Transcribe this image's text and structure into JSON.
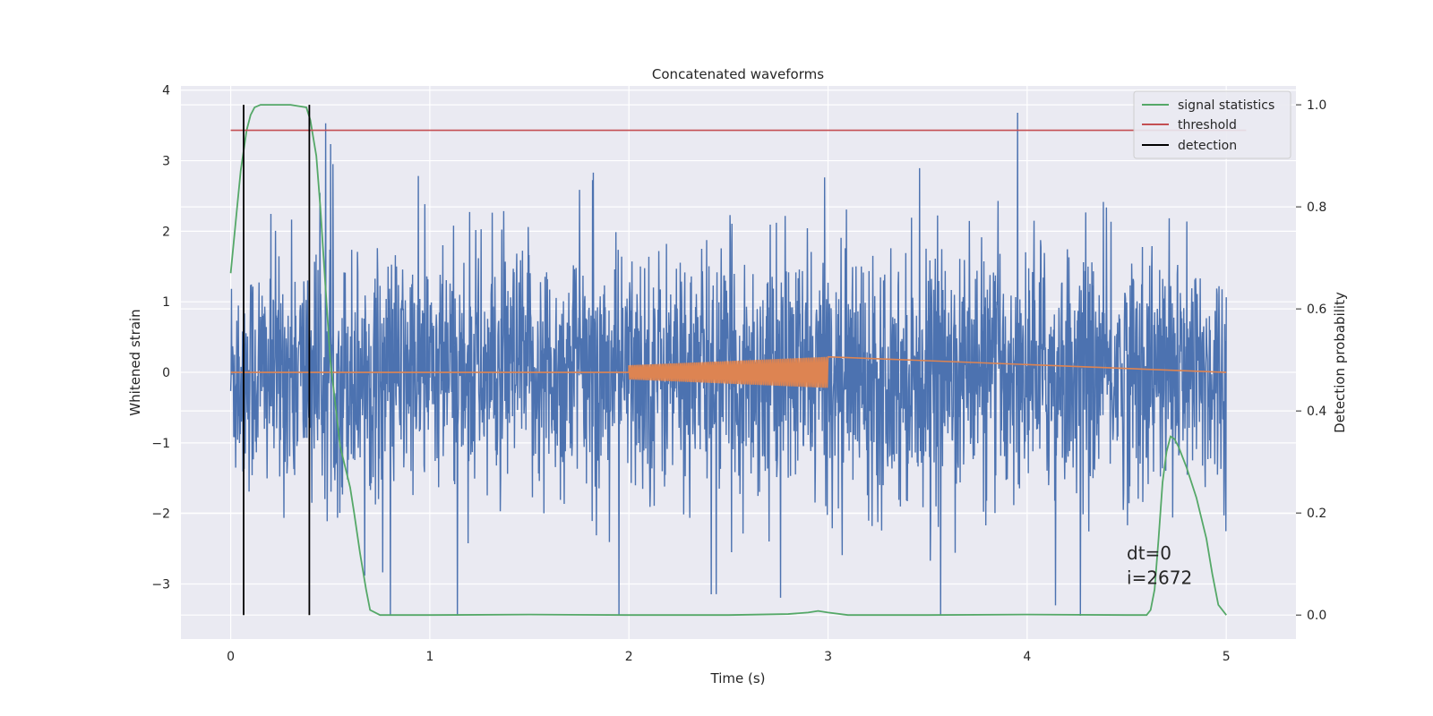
{
  "chart_data": {
    "type": "line",
    "title": "Concatenated waveforms",
    "xlabel": "Time (s)",
    "ylabel": "Whitened strain",
    "ylabel_right": "Detection probability",
    "xlim": [
      -0.25,
      5.35
    ],
    "ylim": [
      -3.78,
      4.06
    ],
    "ylim_right": [
      -0.047,
      1.037
    ],
    "xticks": [
      0,
      1,
      2,
      3,
      4,
      5
    ],
    "xtick_labels": [
      "0",
      "1",
      "2",
      "3",
      "4",
      "5"
    ],
    "yticks": [
      -3,
      -2,
      -1,
      0,
      1,
      2,
      3,
      4
    ],
    "ytick_labels": [
      "−3",
      "−2",
      "−1",
      "0",
      "1",
      "2",
      "3",
      "4"
    ],
    "yticks_right": [
      0.0,
      0.2,
      0.4,
      0.6,
      0.8,
      1.0
    ],
    "ytick_labels_right": [
      "0.0",
      "0.2",
      "0.4",
      "0.6",
      "0.8",
      "1.0"
    ],
    "grid": true,
    "legend_position": "top-right",
    "series": [
      {
        "key": "noise",
        "axis": "left",
        "color": "#4c72b0",
        "description_range": {
          "x": [
            0,
            5
          ],
          "y": [
            -3.45,
            3.68
          ]
        }
      },
      {
        "key": "injection",
        "axis": "left",
        "color": "#dd8452",
        "x": [
          0,
          2,
          3,
          5
        ],
        "amplitude_start": 0.1,
        "amplitude_end": 0.22
      },
      {
        "name": "signal statistics",
        "axis": "right",
        "color": "#55a868",
        "x": [
          0.0,
          0.02,
          0.05,
          0.08,
          0.1,
          0.12,
          0.15,
          0.2,
          0.3,
          0.38,
          0.4,
          0.43,
          0.45,
          0.47,
          0.5,
          0.55,
          0.6,
          0.62,
          0.65,
          0.68,
          0.7,
          0.75,
          1.0,
          1.5,
          2.0,
          2.5,
          2.8,
          2.9,
          2.95,
          3.0,
          3.1,
          3.5,
          4.0,
          4.5,
          4.6,
          4.62,
          4.64,
          4.66,
          4.68,
          4.7,
          4.72,
          4.74,
          4.76,
          4.8,
          4.85,
          4.9,
          4.93,
          4.96,
          5.0
        ],
        "values": [
          0.67,
          0.75,
          0.87,
          0.95,
          0.98,
          0.995,
          1.0,
          1.0,
          1.0,
          0.995,
          0.97,
          0.9,
          0.8,
          0.68,
          0.5,
          0.33,
          0.25,
          0.2,
          0.12,
          0.05,
          0.01,
          0.0,
          0.0,
          0.001,
          0.0,
          0.0,
          0.002,
          0.005,
          0.008,
          0.005,
          0.0,
          0.0,
          0.001,
          0.0,
          0.0,
          0.01,
          0.05,
          0.15,
          0.26,
          0.32,
          0.35,
          0.345,
          0.33,
          0.29,
          0.23,
          0.15,
          0.08,
          0.02,
          0.0
        ]
      },
      {
        "name": "threshold",
        "axis": "right",
        "color": "#c44e52",
        "x": [
          0,
          5.1
        ],
        "values": [
          0.95,
          0.95
        ]
      },
      {
        "name": "detection",
        "axis": "right",
        "color": "#000000",
        "type": "vlines",
        "x": [
          0.065,
          0.395
        ],
        "range": [
          0.0,
          1.0
        ]
      }
    ],
    "annotations": [
      {
        "text": "dt=0",
        "x": 4.5,
        "y": -2.65
      },
      {
        "text": "i=2672",
        "x": 4.5,
        "y": -3.0
      }
    ]
  }
}
